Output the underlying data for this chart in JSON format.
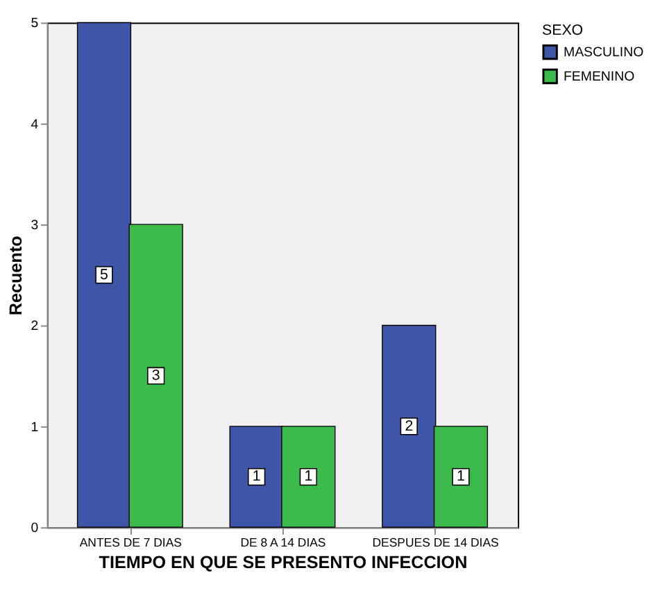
{
  "chart_data": {
    "type": "bar",
    "xlabel": "TIEMPO EN QUE SE PRESENTO INFECCION",
    "ylabel": "Recuento",
    "legend_title": "SEXO",
    "categories": [
      "ANTES DE 7 DIAS",
      "DE 8 A 14 DIAS",
      "DESPUES DE 14 DIAS"
    ],
    "series": [
      {
        "name": "MASCULINO",
        "color": "#3e55a8",
        "values": [
          5,
          1,
          2
        ]
      },
      {
        "name": "FEMENINO",
        "color": "#3cba4c",
        "values": [
          3,
          1,
          1
        ]
      }
    ],
    "ylim": [
      0,
      5
    ],
    "yticks": [
      0,
      1,
      2,
      3,
      4,
      5
    ],
    "grid": false,
    "legend": "top right",
    "data_labels": true
  }
}
